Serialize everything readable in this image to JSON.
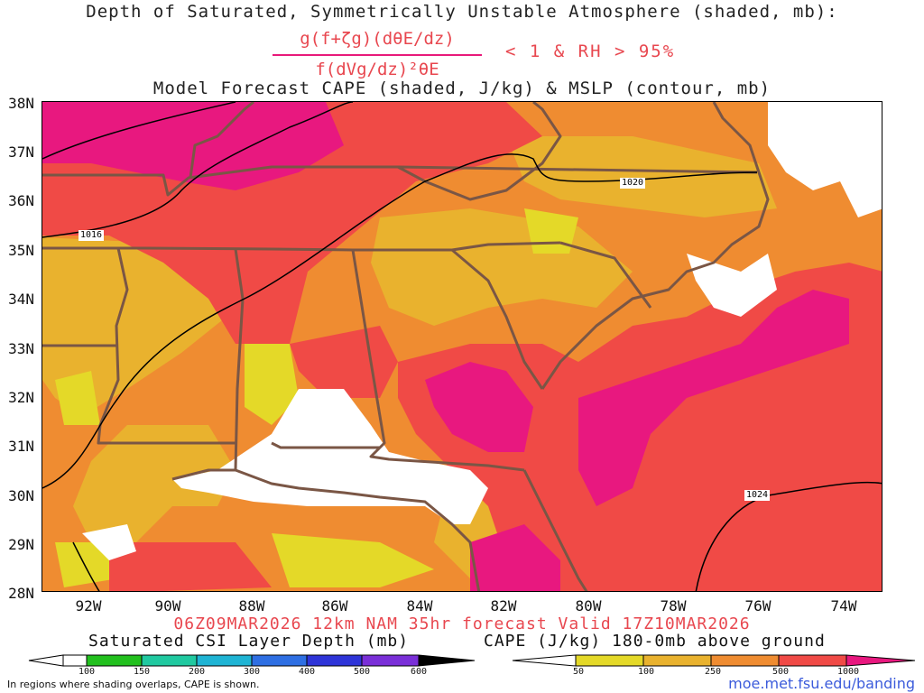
{
  "header": {
    "title_line1": "Depth of Saturated, Symmetrically Unstable Atmosphere (shaded, mb):",
    "fraction_numerator": "g(f+ζg)(dθE/dz)",
    "fraction_denominator": "f(dVg/dz)²θE",
    "condition": "< 1 & RH > 95%",
    "title_line3": "Model Forecast CAPE (shaded, J/kg) & MSLP (contour, mb)"
  },
  "map": {
    "y_labels": [
      "38N",
      "37N",
      "36N",
      "35N",
      "34N",
      "33N",
      "32N",
      "31N",
      "30N",
      "29N",
      "28N"
    ],
    "x_labels": [
      "92W",
      "90W",
      "88W",
      "86W",
      "84W",
      "82W",
      "80W",
      "78W",
      "76W",
      "74W"
    ],
    "isobar_labels": [
      "1016",
      "1020",
      "1024"
    ],
    "colors": {
      "ocean": "#ffffff",
      "cape_50": "#e4d928",
      "cape_100": "#e9b22e",
      "cape_250": "#ef8c31",
      "cape_500": "#f04a46",
      "cape_1000": "#e8187f",
      "state_borders": "#7a5645",
      "isobars": "#000000"
    }
  },
  "footer": {
    "forecast": "06Z09MAR2026 12km NAM 35hr forecast Valid 17Z10MAR2026",
    "csi_label": "Saturated CSI Layer Depth (mb)",
    "csi_ticks": [
      "100",
      "150",
      "200",
      "300",
      "400",
      "500",
      "600"
    ],
    "csi_colors": [
      "#ffffff",
      "#22c01e",
      "#20c9a0",
      "#1fb4d4",
      "#2e6fe3",
      "#2e34d8",
      "#7a2fd8",
      "#000000"
    ],
    "cape_label": "CAPE (J/kg) 180-0mb above ground",
    "cape_ticks": [
      "50",
      "100",
      "250",
      "500",
      "1000"
    ],
    "cape_colors": [
      "#ffffff",
      "#e4d928",
      "#e9b22e",
      "#ef8c31",
      "#f04a46",
      "#e8187f"
    ],
    "note": "In regions where shading overlaps, CAPE is shown.",
    "site": "moe.met.fsu.edu/banding"
  }
}
